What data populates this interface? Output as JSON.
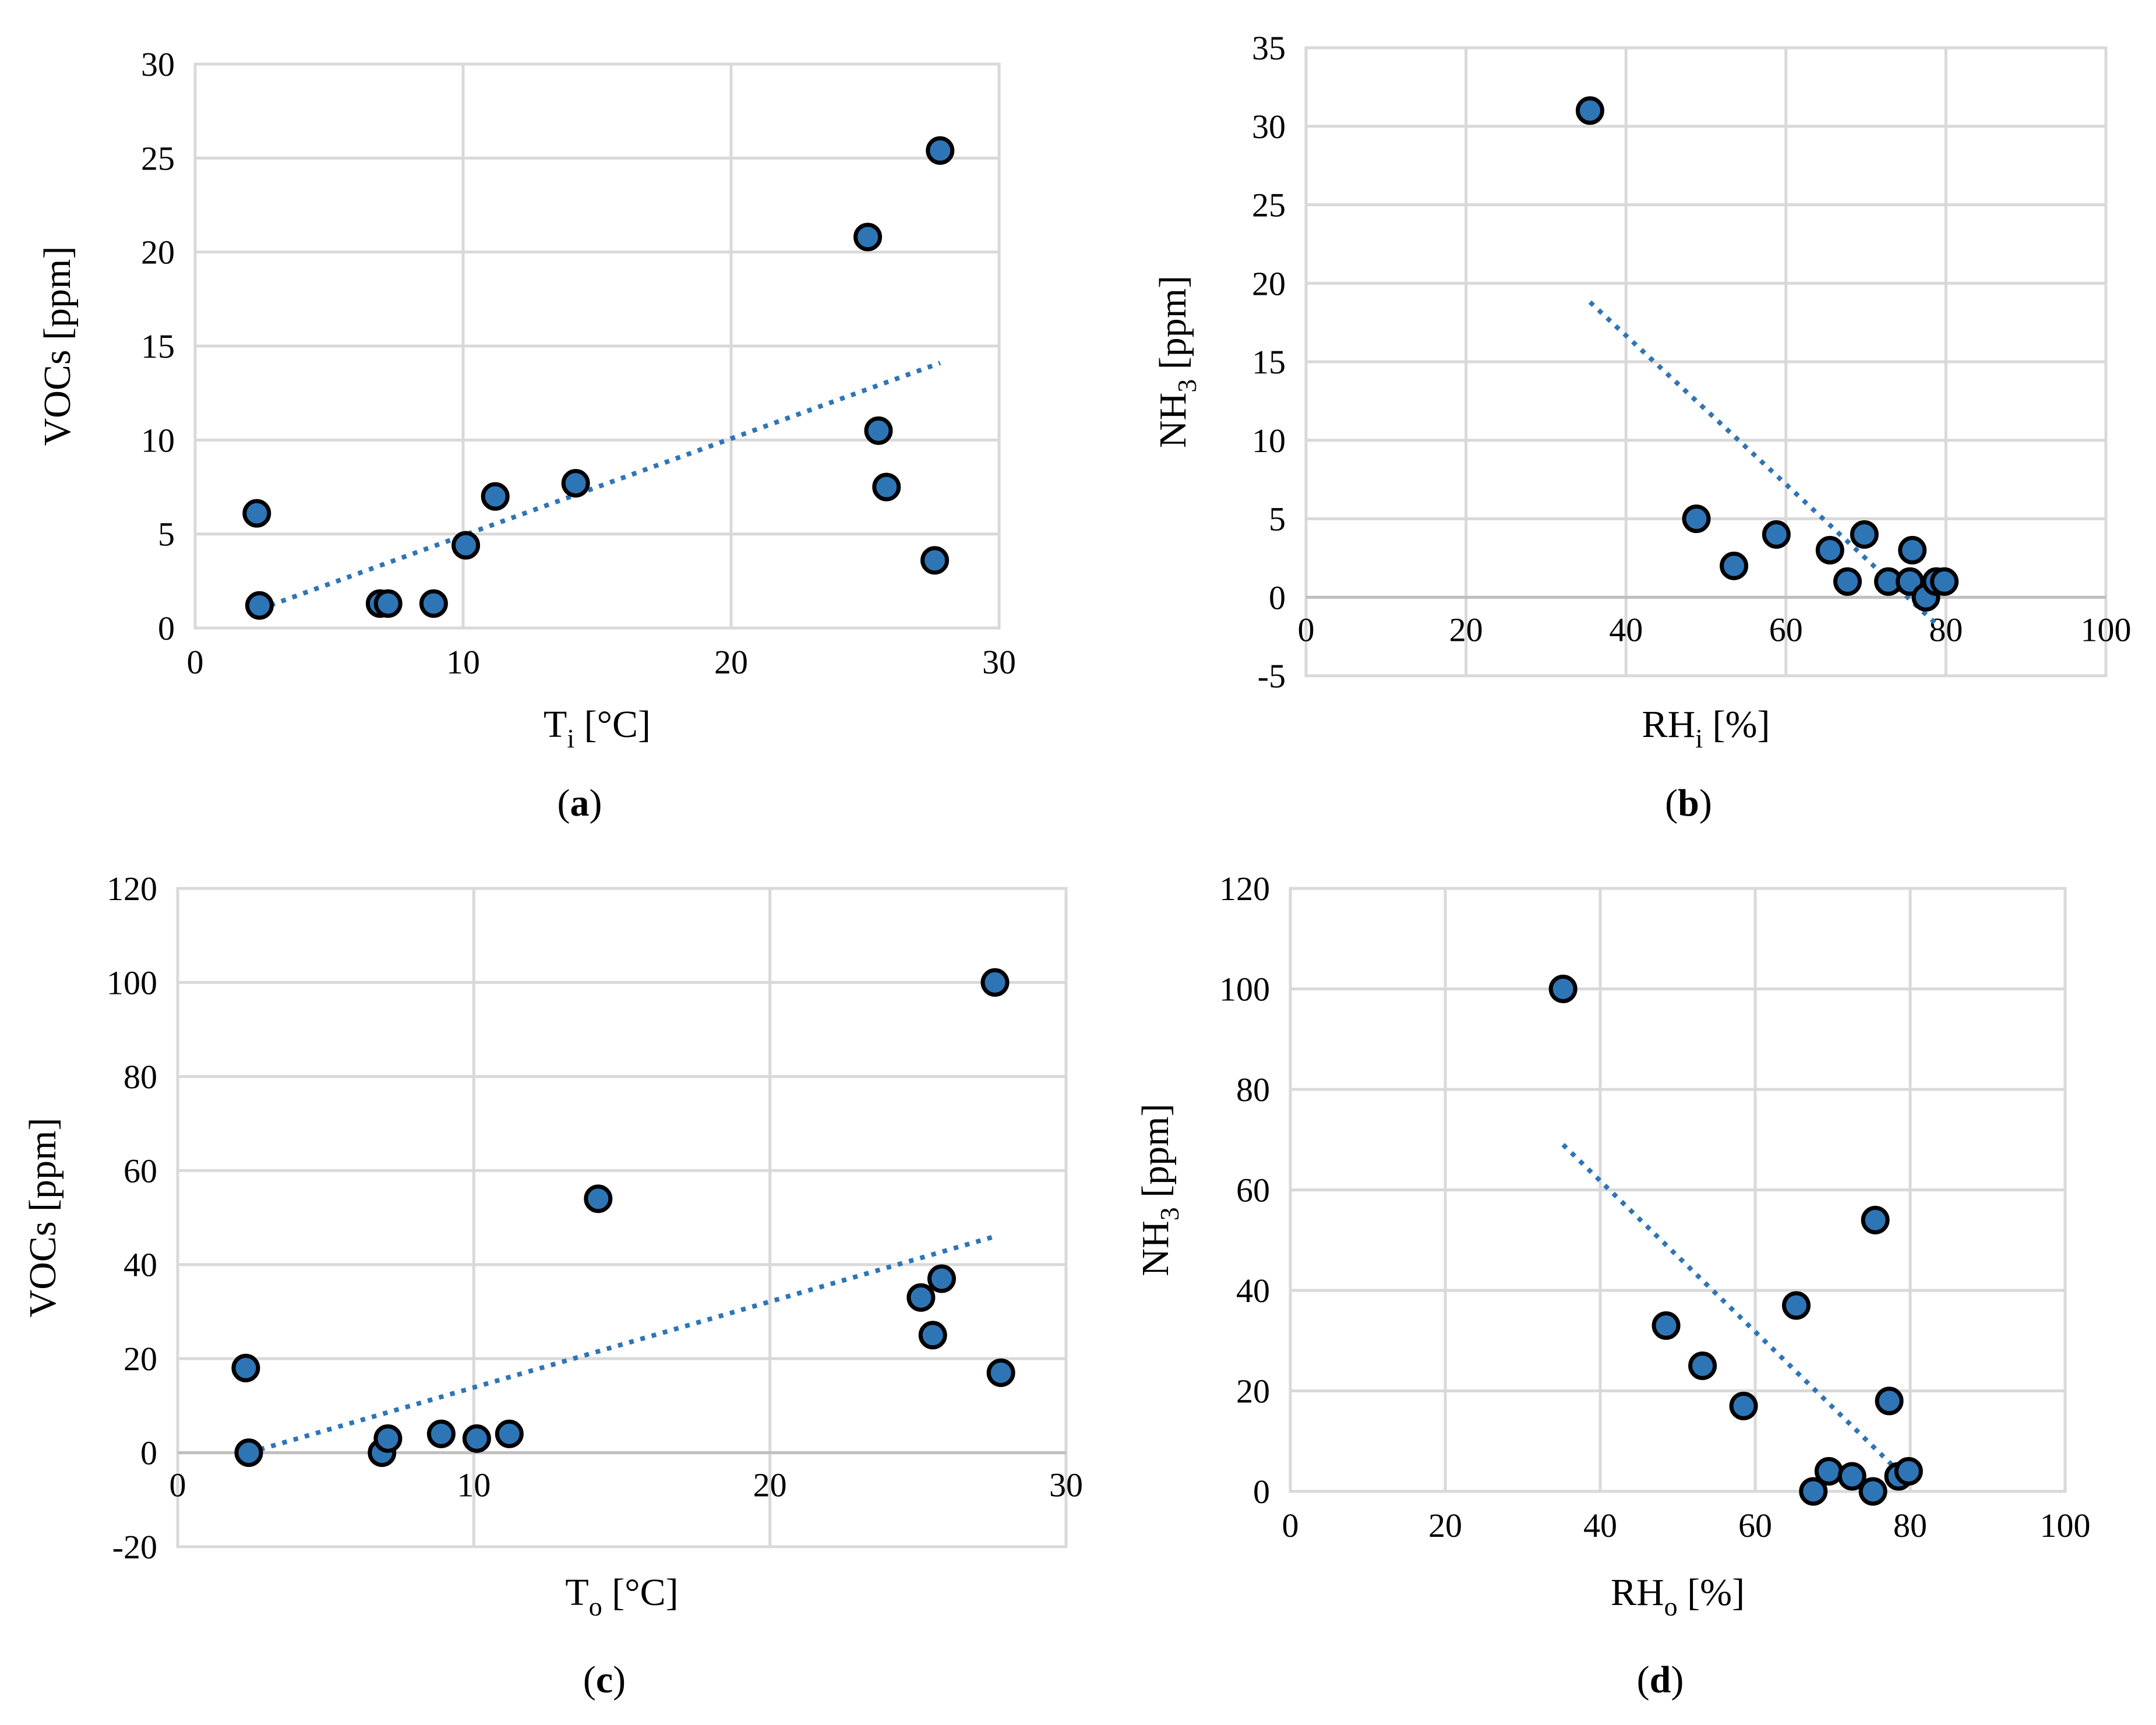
{
  "colors": {
    "marker_fill": "#2e75b6",
    "marker_edge": "#000000",
    "trend": "#2e75b6",
    "grid": "#d9d9d9"
  },
  "chart_data": [
    {
      "id": "a",
      "type": "scatter",
      "caption_letter": "a",
      "xlabel": {
        "main": "T",
        "sub": "i",
        "rest": " [°C]"
      },
      "ylabel": {
        "main": "VOCs [ppm]",
        "sub": "",
        "rest": ""
      },
      "xlim": [
        0,
        30
      ],
      "ylim": [
        0,
        30
      ],
      "xticks": [
        0,
        10,
        20,
        30
      ],
      "yticks": [
        0,
        5,
        10,
        15,
        20,
        25,
        30
      ],
      "xtick_labels": [
        "0",
        "10",
        "20",
        "30"
      ],
      "ytick_labels": [
        "0",
        "5",
        "10",
        "15",
        "20",
        "25",
        "30"
      ],
      "x": [
        2.3,
        2.4,
        6.9,
        7.2,
        8.9,
        10.1,
        11.2,
        14.2,
        25.1,
        25.5,
        25.8,
        27.6,
        27.8
      ],
      "y": [
        6.1,
        1.2,
        1.3,
        1.3,
        1.3,
        4.4,
        7.0,
        7.7,
        20.8,
        10.5,
        7.5,
        3.6,
        25.4
      ],
      "trendline": {
        "x": [
          2.4,
          27.8
        ],
        "y": [
          1.0,
          14.1
        ]
      }
    },
    {
      "id": "b",
      "type": "scatter",
      "caption_letter": "b",
      "xlabel": {
        "main": "RH",
        "sub": "i",
        "rest": " [%]"
      },
      "ylabel": {
        "main": "NH",
        "sub": "3",
        "rest": " [ppm]"
      },
      "xlim": [
        0,
        100
      ],
      "ylim": [
        -5,
        35
      ],
      "xticks": [
        0,
        20,
        40,
        60,
        80,
        100
      ],
      "yticks": [
        -5,
        0,
        5,
        10,
        15,
        20,
        25,
        30,
        35
      ],
      "xtick_labels": [
        "0",
        "20",
        "40",
        "60",
        "80",
        "100"
      ],
      "ytick_labels": [
        "-5",
        "0",
        "5",
        "10",
        "15",
        "20",
        "25",
        "30",
        "35"
      ],
      "x": [
        35.5,
        48.8,
        53.5,
        58.8,
        65.5,
        67.7,
        69.8,
        72.8,
        75.5,
        75.8,
        77.5,
        78.8,
        79.8
      ],
      "y": [
        31,
        5,
        2,
        4,
        3,
        1,
        4,
        1,
        1,
        3,
        0,
        1,
        1
      ],
      "trendline": {
        "x": [
          35.5,
          79.0
        ],
        "y": [
          18.8,
          -1.8
        ]
      }
    },
    {
      "id": "c",
      "type": "scatter",
      "caption_letter": "c",
      "xlabel": {
        "main": "T",
        "sub": "o",
        "rest": " [°C]"
      },
      "ylabel": {
        "main": "VOCs [ppm]",
        "sub": "",
        "rest": ""
      },
      "xlim": [
        0,
        30
      ],
      "ylim": [
        -20,
        120
      ],
      "xticks": [
        0,
        10,
        20,
        30
      ],
      "yticks": [
        -20,
        0,
        20,
        40,
        60,
        80,
        100,
        120
      ],
      "xtick_labels": [
        "0",
        "10",
        "20",
        "30"
      ],
      "ytick_labels": [
        "-20",
        "0",
        "20",
        "40",
        "60",
        "80",
        "100",
        "120"
      ],
      "x": [
        2.3,
        2.4,
        6.9,
        7.1,
        8.9,
        10.1,
        11.2,
        14.2,
        25.1,
        25.5,
        25.8,
        27.6,
        27.8
      ],
      "y": [
        18,
        0,
        0,
        3,
        4,
        3,
        4,
        54,
        33,
        25,
        37,
        100,
        17
      ],
      "trendline": {
        "x": [
          2.4,
          27.6
        ],
        "y": [
          0,
          46
        ]
      }
    },
    {
      "id": "d",
      "type": "scatter",
      "caption_letter": "d",
      "xlabel": {
        "main": "RH",
        "sub": "o",
        "rest": " [%]"
      },
      "ylabel": {
        "main": "NH",
        "sub": "3",
        "rest": " [ppm]"
      },
      "xlim": [
        0,
        100
      ],
      "ylim": [
        0,
        120
      ],
      "xticks": [
        0,
        20,
        40,
        60,
        80,
        100
      ],
      "yticks": [
        0,
        20,
        40,
        60,
        80,
        100,
        120
      ],
      "xtick_labels": [
        "0",
        "20",
        "40",
        "60",
        "80",
        "100"
      ],
      "ytick_labels": [
        "0",
        "20",
        "40",
        "60",
        "80",
        "100",
        "120"
      ],
      "x": [
        35.2,
        48.5,
        53.2,
        58.5,
        65.3,
        67.5,
        69.5,
        72.5,
        75.2,
        75.5,
        77.3,
        78.5,
        79.8
      ],
      "y": [
        100,
        33,
        25,
        17,
        37,
        0,
        4,
        3,
        0,
        54,
        18,
        3,
        4
      ],
      "trendline": {
        "x": [
          35.2,
          78.5
        ],
        "y": [
          69,
          4
        ]
      }
    }
  ]
}
